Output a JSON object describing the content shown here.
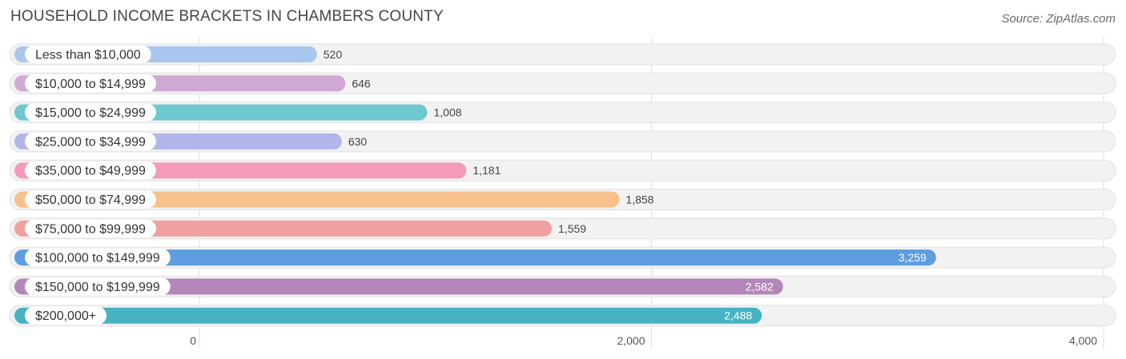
{
  "title": "HOUSEHOLD INCOME BRACKETS IN CHAMBERS COUNTY",
  "source": "Source: ZipAtlas.com",
  "chart_data": {
    "type": "bar",
    "orientation": "horizontal",
    "title": "HOUSEHOLD INCOME BRACKETS IN CHAMBERS COUNTY",
    "categories": [
      "Less than $10,000",
      "$10,000 to $14,999",
      "$15,000 to $24,999",
      "$25,000 to $34,999",
      "$35,000 to $49,999",
      "$50,000 to $74,999",
      "$75,000 to $99,999",
      "$100,000 to $149,999",
      "$150,000 to $199,999",
      "$200,000+"
    ],
    "values": [
      520,
      646,
      1008,
      630,
      1181,
      1858,
      1559,
      3259,
      2582,
      2488
    ],
    "value_labels": [
      "520",
      "646",
      "1,008",
      "630",
      "1,181",
      "1,858",
      "1,559",
      "3,259",
      "2,582",
      "2,488"
    ],
    "colors": [
      "#a8c6ee",
      "#cfa9d1",
      "#6ec8cf",
      "#b2b5ea",
      "#f59ab9",
      "#f8c08d",
      "#f0a0a0",
      "#5e9ee0",
      "#b487ba",
      "#46b3c2"
    ],
    "xlim": [
      0,
      4000
    ],
    "x_ticks": [
      0,
      2000,
      4000
    ],
    "x_tick_labels": [
      "0",
      "2,000",
      "4,000"
    ],
    "grid": true,
    "legend": "none"
  }
}
